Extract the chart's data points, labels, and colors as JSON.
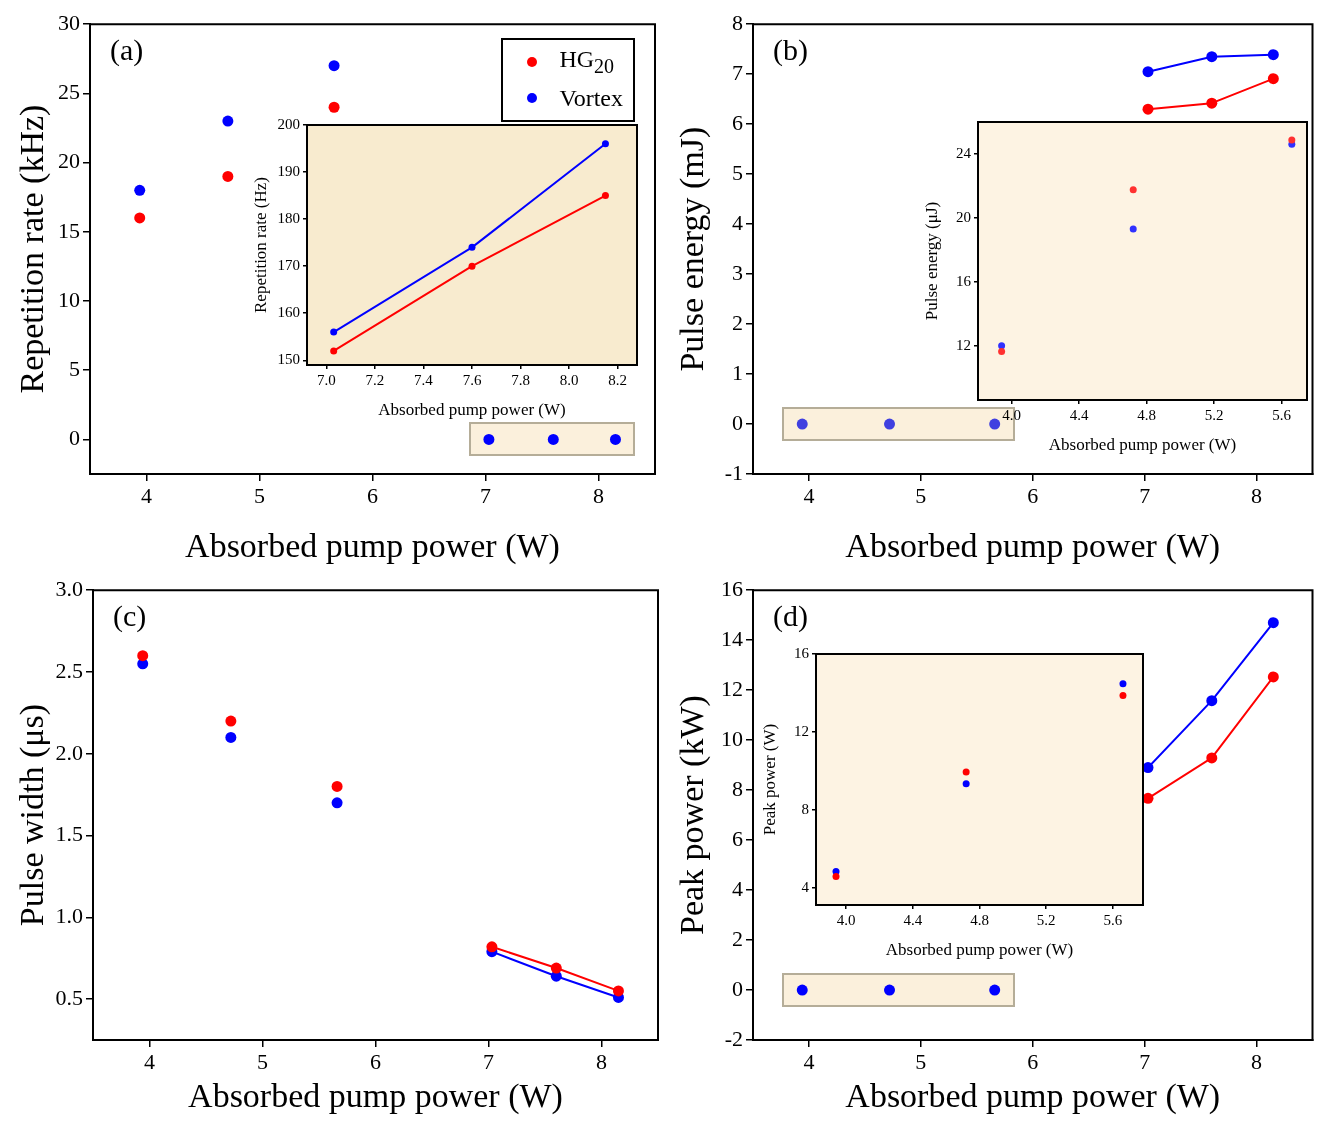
{
  "chart_data": [
    {
      "type": "scatter",
      "xlabel": "Absorbed pump power (W)",
      "ylabel": "Repetition rate (kHz)",
      "xlim": [
        3.5,
        8.5
      ],
      "xticks": [
        4,
        5,
        6,
        7,
        8
      ],
      "ylim": [
        -2.5,
        30
      ],
      "yticks": [
        0,
        5,
        10,
        15,
        20,
        25,
        30
      ],
      "grid": false,
      "marker": "circle",
      "legend": "top right",
      "annotations": [
        "(a)"
      ],
      "series": [
        {
          "name": "HG$_{20}$",
          "color": "#ff0000",
          "type": "scatter",
          "x": [
            3.94,
            4.72,
            5.66
          ],
          "values": [
            16,
            19,
            24
          ]
        },
        {
          "name": "Vortex",
          "color": "#0000ff",
          "type": "scatter",
          "x": [
            3.94,
            4.72,
            5.66
          ],
          "values": [
            18,
            23,
            27
          ]
        },
        {
          "color": "#0000ff",
          "type": "scatter",
          "x": [
            7.03,
            7.6,
            8.15
          ],
          "values": [
            0,
            0,
            0
          ]
        }
      ]
    },
    {
      "type": "line",
      "xlabel": "Absorbed pump power (W)",
      "ylabel": "Repetition rate (Hz)",
      "xlim": [
        6.92,
        8.28
      ],
      "xticks": [
        {
          "value": 7,
          "label": "7.0"
        },
        7.2,
        7.4,
        7.6,
        7.8,
        {
          "value": 8,
          "label": "8.0"
        },
        8.2
      ],
      "ylim": [
        149,
        200
      ],
      "yticks": [
        150,
        160,
        170,
        180,
        190,
        200
      ],
      "grid": false,
      "marker": "circle",
      "series": [
        {
          "color": "#ff0000",
          "x": [
            7.03,
            7.6,
            8.15
          ],
          "values": [
            152,
            170,
            185
          ]
        },
        {
          "color": "#0000ff",
          "x": [
            7.03,
            7.6,
            8.15
          ],
          "values": [
            156,
            174,
            196
          ]
        }
      ]
    },
    {
      "type": "line",
      "xlabel": "Absorbed pump power (W)",
      "ylabel": "Pulse energy (mJ)",
      "xlim": [
        3.5,
        8.5
      ],
      "xticks": [
        4,
        5,
        6,
        7,
        8
      ],
      "ylim": [
        -1,
        8
      ],
      "yticks": [
        -1,
        0,
        1,
        2,
        3,
        4,
        5,
        6,
        7,
        8
      ],
      "grid": false,
      "marker": "circle",
      "annotations": [
        "(b)"
      ],
      "series": [
        {
          "color": "#ff0000",
          "x": [
            7.03,
            7.6,
            8.15
          ],
          "values": [
            6.3,
            6.42,
            6.91
          ]
        },
        {
          "color": "#0000ff",
          "x": [
            7.03,
            7.6,
            8.15
          ],
          "values": [
            7.05,
            7.35,
            7.39
          ]
        },
        {
          "color": "#4040e0",
          "type": "scatter",
          "x": [
            3.94,
            4.72,
            5.66
          ],
          "values": [
            0,
            0,
            0
          ]
        }
      ]
    },
    {
      "type": "scatter",
      "xlabel": "Absorbed pump power (W)",
      "ylabel": "Pulse energy (μJ)",
      "xlim": [
        3.8,
        5.75
      ],
      "xticks": [
        {
          "value": 4,
          "label": "4.0"
        },
        4.4,
        4.8,
        5.2,
        5.6
      ],
      "ylim": [
        8.6,
        26
      ],
      "yticks": [
        12,
        16,
        20,
        24
      ],
      "grid": false,
      "marker": "circle",
      "series": [
        {
          "color": "#ff3030",
          "x": [
            3.94,
            4.72,
            5.66
          ],
          "values": [
            11.63,
            21.76,
            24.87
          ]
        },
        {
          "color": "#3030ff",
          "x": [
            3.94,
            4.72,
            5.66
          ],
          "values": [
            12.0,
            19.3,
            24.6
          ]
        }
      ]
    },
    {
      "type": "scatter",
      "xlabel": "Absorbed pump power (W)",
      "ylabel": "Pulse width (μs)",
      "xlim": [
        3.5,
        8.5
      ],
      "xticks": [
        4,
        5,
        6,
        7,
        8
      ],
      "ylim": [
        0.25,
        3.0
      ],
      "yticks": [
        0.5,
        {
          "value": 1,
          "label": "1.0"
        },
        1.5,
        {
          "value": 2,
          "label": "2.0"
        },
        2.5,
        {
          "value": 3,
          "label": "3.0"
        }
      ],
      "grid": false,
      "marker": "circle",
      "annotations": [
        "(c)"
      ],
      "series": [
        {
          "color": "#ff0000",
          "x": [
            3.94,
            4.72,
            5.66
          ],
          "values": [
            2.6,
            2.2,
            1.8
          ]
        },
        {
          "color": "#0000ff",
          "x": [
            3.94,
            4.72,
            5.66
          ],
          "values": [
            2.55,
            2.1,
            1.7
          ]
        },
        {
          "color": "#ff0000",
          "type": "line",
          "x": [
            7.03,
            7.6,
            8.15
          ],
          "values": [
            0.82,
            0.69,
            0.55
          ]
        },
        {
          "color": "#0000ff",
          "type": "line",
          "x": [
            7.03,
            7.6,
            8.15
          ],
          "values": [
            0.79,
            0.64,
            0.51
          ]
        }
      ]
    },
    {
      "type": "line",
      "xlabel": "Absorbed pump power (W)",
      "ylabel": "Peak power (kW)",
      "xlim": [
        3.5,
        8.5
      ],
      "xticks": [
        4,
        5,
        6,
        7,
        8
      ],
      "ylim": [
        -2,
        16
      ],
      "yticks": [
        -2,
        0,
        2,
        4,
        6,
        8,
        10,
        12,
        14,
        16
      ],
      "grid": false,
      "marker": "circle",
      "annotations": [
        "(d)"
      ],
      "series": [
        {
          "color": "#ff0000",
          "x": [
            7.03,
            7.6,
            8.15
          ],
          "values": [
            7.67,
            9.29,
            12.53
          ]
        },
        {
          "color": "#0000ff",
          "x": [
            7.03,
            7.6,
            8.15
          ],
          "values": [
            8.9,
            11.58,
            14.7
          ]
        },
        {
          "color": "#0000ff",
          "type": "scatter",
          "x": [
            3.94,
            4.72,
            5.66
          ],
          "values": [
            0,
            0,
            0
          ]
        }
      ]
    },
    {
      "type": "scatter",
      "xlabel": "Absorbed pump power (W)",
      "ylabel": "Peak power (W)",
      "xlim": [
        3.82,
        5.78
      ],
      "xticks": [
        {
          "value": 4,
          "label": "4.0"
        },
        4.4,
        4.8,
        5.2,
        5.6
      ],
      "ylim": [
        3.14,
        16
      ],
      "yticks": [
        4,
        8,
        12,
        16
      ],
      "grid": false,
      "marker": "circle",
      "series": [
        {
          "color": "#ff0000",
          "x": [
            3.94,
            4.72,
            5.66
          ],
          "values": [
            4.6,
            9.96,
            13.87
          ]
        },
        {
          "color": "#0000ff",
          "x": [
            3.94,
            4.72,
            5.66
          ],
          "values": [
            4.85,
            9.35,
            14.48
          ]
        }
      ]
    }
  ]
}
